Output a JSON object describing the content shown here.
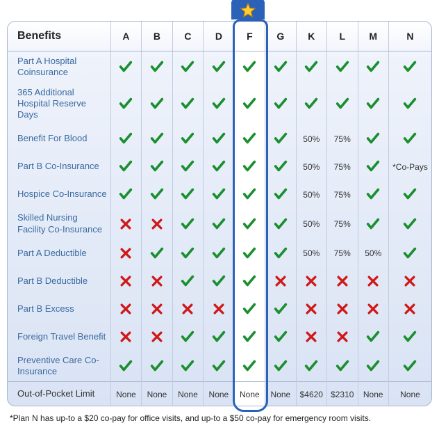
{
  "header_label": "Benefits",
  "plans": [
    "A",
    "B",
    "C",
    "D",
    "F",
    "G",
    "K",
    "L",
    "M",
    "N"
  ],
  "featured_plan_index": 4,
  "colors": {
    "check": "#1a8f2e",
    "cross": "#d01818",
    "benefit_text": "#3a6aa0",
    "border": "#a8b8d0",
    "highlight": "#2b61b8",
    "star_fill": "#ffcc33",
    "star_stroke": "#b87d00",
    "bg_top": "#ffffff",
    "bg_bottom": "#d9e3f4"
  },
  "benefits": [
    {
      "label": "Part A Hospital Coinsurance",
      "values": [
        "check",
        "check",
        "check",
        "check",
        "check",
        "check",
        "check",
        "check",
        "check",
        "check"
      ]
    },
    {
      "label": "365 Additional Hospital Reserve Days",
      "values": [
        "check",
        "check",
        "check",
        "check",
        "check",
        "check",
        "check",
        "check",
        "check",
        "check"
      ]
    },
    {
      "label": "Benefit For Blood",
      "values": [
        "check",
        "check",
        "check",
        "check",
        "check",
        "check",
        "50%",
        "75%",
        "check",
        "check"
      ]
    },
    {
      "label": "Part B Co-Insurance",
      "values": [
        "check",
        "check",
        "check",
        "check",
        "check",
        "check",
        "50%",
        "75%",
        "check",
        "*Co-Pays"
      ]
    },
    {
      "label": "Hospice Co-Insurance",
      "values": [
        "check",
        "check",
        "check",
        "check",
        "check",
        "check",
        "50%",
        "75%",
        "check",
        "check"
      ]
    },
    {
      "label": "Skilled Nursing Facility Co-Insurance",
      "values": [
        "cross",
        "cross",
        "check",
        "check",
        "check",
        "check",
        "50%",
        "75%",
        "check",
        "check"
      ]
    },
    {
      "label": "Part A Deductible",
      "values": [
        "cross",
        "check",
        "check",
        "check",
        "check",
        "check",
        "50%",
        "75%",
        "50%",
        "check"
      ]
    },
    {
      "label": "Part B Deductible",
      "values": [
        "cross",
        "cross",
        "check",
        "check",
        "check",
        "cross",
        "cross",
        "cross",
        "cross",
        "cross"
      ]
    },
    {
      "label": "Part B Excess",
      "values": [
        "cross",
        "cross",
        "cross",
        "cross",
        "check",
        "check",
        "cross",
        "cross",
        "cross",
        "cross"
      ]
    },
    {
      "label": "Foreign Travel Benefit",
      "values": [
        "cross",
        "cross",
        "check",
        "check",
        "check",
        "check",
        "cross",
        "cross",
        "check",
        "check"
      ]
    },
    {
      "label": "Preventive Care Co-Insurance",
      "values": [
        "check",
        "check",
        "check",
        "check",
        "check",
        "check",
        "check",
        "check",
        "check",
        "check"
      ]
    }
  ],
  "last_row": {
    "label": "Out-of-Pocket Limit",
    "values": [
      "None",
      "None",
      "None",
      "None",
      "None",
      "None",
      "$4620",
      "$2310",
      "None",
      "None"
    ]
  },
  "footnote": "*Plan N has up-to a $20 co-pay for office visits, and up-to a $50 co-pay for emergency room visits."
}
